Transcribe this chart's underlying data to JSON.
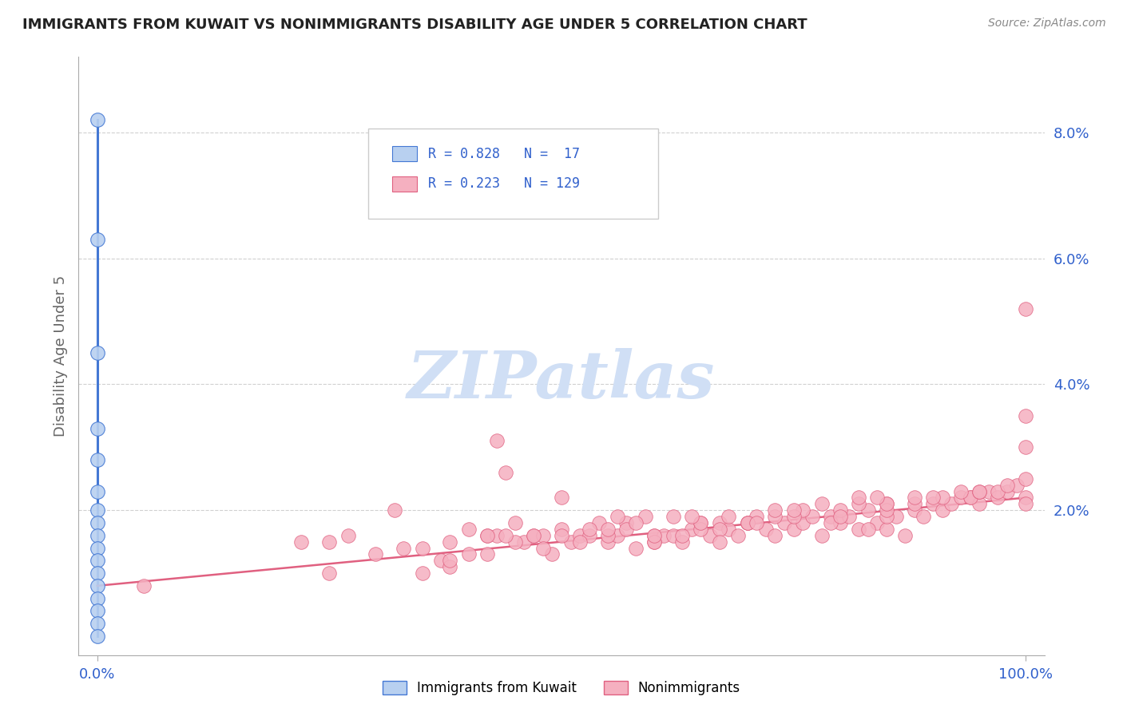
{
  "title": "IMMIGRANTS FROM KUWAIT VS NONIMMIGRANTS DISABILITY AGE UNDER 5 CORRELATION CHART",
  "source": "Source: ZipAtlas.com",
  "ylabel": "Disability Age Under 5",
  "ytick_labels": [
    "2.0%",
    "4.0%",
    "6.0%",
    "8.0%"
  ],
  "ytick_values": [
    0.02,
    0.04,
    0.06,
    0.08
  ],
  "xlim": [
    -0.02,
    1.02
  ],
  "ylim": [
    -0.003,
    0.092
  ],
  "legend_blue_R": "R = 0.828",
  "legend_blue_N": "N =  17",
  "legend_pink_R": "R = 0.223",
  "legend_pink_N": "N = 129",
  "legend_label_blue": "Immigrants from Kuwait",
  "legend_label_pink": "Nonimmigrants",
  "blue_color": "#b8d0f0",
  "blue_line_color": "#4478d4",
  "pink_color": "#f5b0c0",
  "pink_line_color": "#e06080",
  "grid_color": "#d0d0d0",
  "title_color": "#222222",
  "axis_label_color": "#666666",
  "tick_color": "#3060cc",
  "watermark_text": "ZIPatlas",
  "watermark_color": "#d0dff5",
  "blue_points_x": [
    0.0,
    0.0,
    0.0,
    0.0,
    0.0,
    0.0,
    0.0,
    0.0,
    0.0,
    0.0,
    0.0,
    0.0,
    0.0,
    0.0,
    0.0,
    0.0,
    0.0
  ],
  "blue_points_y": [
    0.082,
    0.063,
    0.045,
    0.033,
    0.028,
    0.023,
    0.02,
    0.018,
    0.016,
    0.014,
    0.012,
    0.01,
    0.008,
    0.006,
    0.004,
    0.002,
    0.0
  ],
  "blue_line_x": [
    0.0,
    0.0
  ],
  "blue_line_y": [
    0.0,
    0.082
  ],
  "pink_line_intercept": 0.008,
  "pink_line_slope": 0.014,
  "pink_points_x": [
    0.05,
    0.22,
    0.25,
    0.27,
    0.3,
    0.32,
    0.35,
    0.37,
    0.38,
    0.4,
    0.42,
    0.43,
    0.44,
    0.45,
    0.46,
    0.47,
    0.48,
    0.49,
    0.5,
    0.51,
    0.52,
    0.53,
    0.54,
    0.55,
    0.56,
    0.57,
    0.58,
    0.59,
    0.6,
    0.61,
    0.62,
    0.63,
    0.64,
    0.65,
    0.66,
    0.67,
    0.68,
    0.69,
    0.7,
    0.71,
    0.72,
    0.73,
    0.74,
    0.75,
    0.76,
    0.77,
    0.78,
    0.79,
    0.8,
    0.81,
    0.82,
    0.83,
    0.84,
    0.85,
    0.86,
    0.87,
    0.88,
    0.89,
    0.9,
    0.91,
    0.92,
    0.93,
    0.94,
    0.95,
    0.96,
    0.97,
    0.98,
    0.99,
    1.0,
    0.25,
    0.38,
    0.42,
    0.48,
    0.52,
    0.56,
    0.6,
    0.63,
    0.67,
    0.7,
    0.73,
    0.76,
    0.79,
    0.82,
    0.85,
    0.88,
    0.91,
    0.94,
    0.97,
    1.0,
    1.0,
    0.5,
    0.55,
    0.6,
    0.65,
    0.7,
    0.75,
    0.8,
    0.85,
    0.9,
    0.95,
    1.0,
    0.43,
    0.57,
    0.71,
    0.85,
    1.0,
    0.33,
    0.5,
    0.67,
    0.83,
    0.4,
    0.6,
    0.8,
    1.0,
    0.45,
    0.65,
    0.85,
    0.35,
    0.55,
    0.75,
    0.95,
    0.47,
    0.68,
    0.88,
    0.42,
    0.62,
    0.82,
    0.53,
    0.73,
    0.93,
    0.38,
    0.58,
    0.78,
    0.98,
    0.44,
    0.64,
    0.84
  ],
  "pink_points_y": [
    0.008,
    0.015,
    0.01,
    0.016,
    0.013,
    0.02,
    0.01,
    0.012,
    0.011,
    0.017,
    0.013,
    0.031,
    0.026,
    0.018,
    0.015,
    0.016,
    0.016,
    0.013,
    0.017,
    0.015,
    0.016,
    0.016,
    0.018,
    0.015,
    0.016,
    0.018,
    0.014,
    0.019,
    0.016,
    0.016,
    0.016,
    0.015,
    0.017,
    0.018,
    0.016,
    0.018,
    0.017,
    0.016,
    0.018,
    0.019,
    0.017,
    0.016,
    0.018,
    0.017,
    0.018,
    0.019,
    0.016,
    0.019,
    0.018,
    0.019,
    0.017,
    0.02,
    0.018,
    0.017,
    0.019,
    0.016,
    0.02,
    0.019,
    0.021,
    0.02,
    0.021,
    0.022,
    0.022,
    0.021,
    0.023,
    0.022,
    0.023,
    0.024,
    0.052,
    0.015,
    0.012,
    0.016,
    0.014,
    0.015,
    0.019,
    0.015,
    0.016,
    0.017,
    0.018,
    0.019,
    0.02,
    0.018,
    0.021,
    0.019,
    0.021,
    0.022,
    0.022,
    0.023,
    0.03,
    0.022,
    0.022,
    0.016,
    0.015,
    0.017,
    0.018,
    0.019,
    0.02,
    0.021,
    0.022,
    0.023,
    0.025,
    0.016,
    0.017,
    0.018,
    0.02,
    0.035,
    0.014,
    0.016,
    0.015,
    0.017,
    0.013,
    0.016,
    0.019,
    0.021,
    0.015,
    0.018,
    0.021,
    0.014,
    0.017,
    0.02,
    0.023,
    0.016,
    0.019,
    0.022,
    0.016,
    0.019,
    0.022,
    0.017,
    0.02,
    0.023,
    0.015,
    0.018,
    0.021,
    0.024,
    0.016,
    0.019,
    0.022
  ]
}
